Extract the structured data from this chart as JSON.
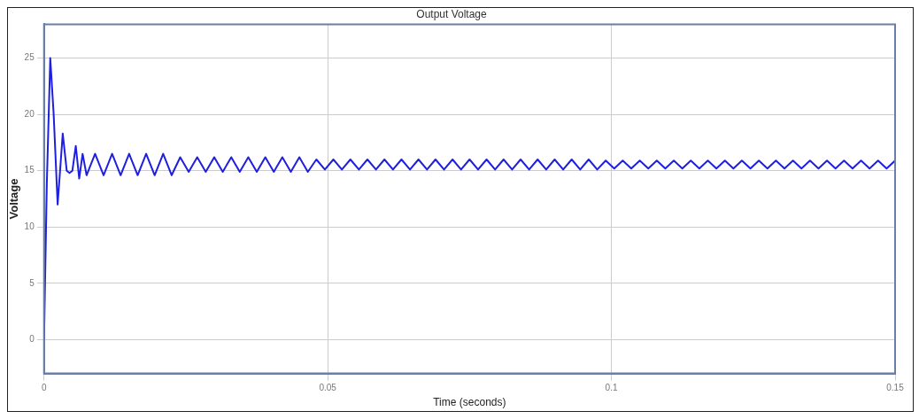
{
  "chart_data": {
    "type": "line",
    "title": "Output Voltage",
    "xlabel": "Time (seconds)",
    "ylabel": "Voltage",
    "xlim": [
      0,
      0.15
    ],
    "xticks": [
      0,
      0.05,
      0.1,
      0.15
    ],
    "ylim": [
      -3,
      28
    ],
    "yticks": [
      0,
      5,
      10,
      15,
      20,
      25
    ],
    "grid": true,
    "legend": false,
    "marker": "none",
    "line_style": "solid",
    "series": [
      {
        "color": "#1f1fe0",
        "x": [
          0,
          0.0005,
          0.0011,
          0.0017,
          0.0024,
          0.0033,
          0.004,
          0.0045,
          0.005,
          0.0056,
          0.0062,
          0.0068,
          0.0075,
          0.009,
          0.0105,
          0.012,
          0.0135,
          0.015,
          0.0165,
          0.018,
          0.0195,
          0.021,
          0.0225,
          0.024,
          0.0255,
          0.027,
          0.0285,
          0.03,
          0.0315,
          0.033,
          0.0345,
          0.036,
          0.0375,
          0.039,
          0.0405,
          0.042,
          0.0435,
          0.045,
          0.0465,
          0.048,
          0.0495,
          0.051,
          0.0525,
          0.054,
          0.0555,
          0.057,
          0.0585,
          0.06,
          0.0615,
          0.063,
          0.0645,
          0.066,
          0.0675,
          0.069,
          0.0705,
          0.072,
          0.0735,
          0.075,
          0.0765,
          0.078,
          0.0795,
          0.081,
          0.0825,
          0.084,
          0.0855,
          0.087,
          0.0885,
          0.09,
          0.0915,
          0.093,
          0.0945,
          0.096,
          0.0975,
          0.099,
          0.1005,
          0.102,
          0.1035,
          0.105,
          0.1065,
          0.108,
          0.1095,
          0.111,
          0.1125,
          0.114,
          0.1155,
          0.117,
          0.1185,
          0.12,
          0.1215,
          0.123,
          0.1245,
          0.126,
          0.1275,
          0.129,
          0.1305,
          0.132,
          0.1335,
          0.135,
          0.1365,
          0.138,
          0.1395,
          0.141,
          0.1425,
          0.144,
          0.1455,
          0.147,
          0.1485,
          0.15
        ],
        "values": [
          0,
          14,
          25,
          20,
          12,
          18.3,
          15,
          14.8,
          15,
          17.2,
          14.3,
          16.5,
          14.6,
          16.5,
          14.6,
          16.5,
          14.6,
          16.5,
          14.6,
          16.5,
          14.6,
          16.5,
          14.6,
          16.2,
          14.9,
          16.2,
          14.9,
          16.2,
          14.9,
          16.2,
          14.9,
          16.2,
          14.9,
          16.2,
          14.9,
          16.2,
          14.9,
          16.2,
          14.9,
          16.0,
          15.1,
          16.0,
          15.1,
          16.0,
          15.1,
          16.0,
          15.1,
          16.0,
          15.1,
          16.0,
          15.1,
          16.0,
          15.1,
          16.0,
          15.1,
          16.0,
          15.1,
          16.0,
          15.1,
          16.0,
          15.1,
          16.0,
          15.1,
          16.0,
          15.1,
          16.0,
          15.1,
          16.0,
          15.1,
          16.0,
          15.1,
          16.0,
          15.1,
          15.9,
          15.2,
          15.9,
          15.2,
          15.9,
          15.2,
          15.9,
          15.2,
          15.9,
          15.2,
          15.9,
          15.2,
          15.9,
          15.2,
          15.9,
          15.2,
          15.9,
          15.2,
          15.9,
          15.2,
          15.9,
          15.2,
          15.9,
          15.2,
          15.9,
          15.2,
          15.9,
          15.2,
          15.9,
          15.2,
          15.9,
          15.2,
          15.9,
          15.2,
          15.9
        ]
      }
    ]
  }
}
